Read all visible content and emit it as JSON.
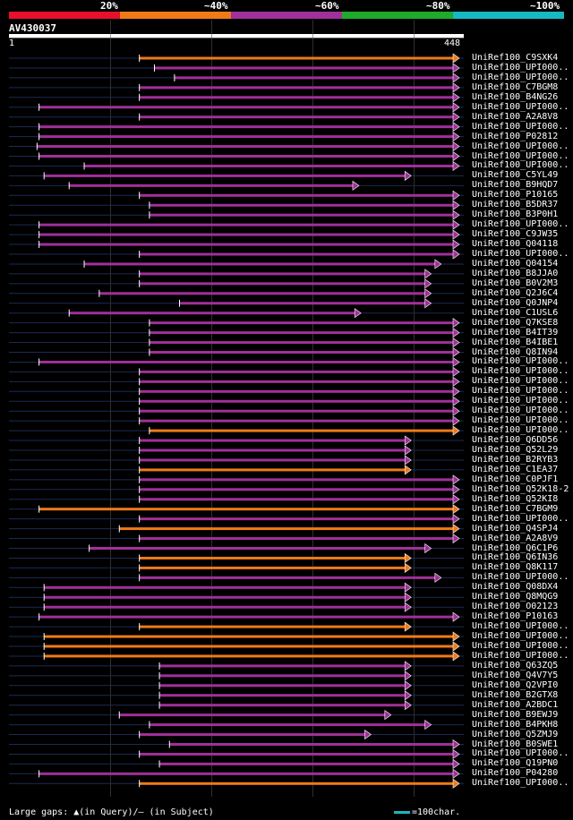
{
  "header": {
    "percent_labels": [
      "20%",
      "~40%",
      "~60%",
      "~80%",
      "~100%"
    ],
    "identity_colors": [
      "#e8102c",
      "#ef7a18",
      "#a0309a",
      "#1faa2c",
      "#16b8c4"
    ],
    "query_name": "AV430037",
    "ruler_start": "1",
    "ruler_end": "448"
  },
  "footer": {
    "gaps_legend": "Large gaps: ▲(in Query)/– (in Subject)",
    "scale_label": "=100char."
  },
  "chart_data": {
    "type": "alignment",
    "query_length": 448,
    "hits": [
      {
        "name": "UniRef100_C9SXK4",
        "start": 130,
        "end": 448,
        "identity": "~40%"
      },
      {
        "name": "UniRef100_UPI000..",
        "start": 145,
        "end": 448,
        "identity": "~60%"
      },
      {
        "name": "UniRef100_UPI000..",
        "start": 165,
        "end": 448,
        "identity": "~60%"
      },
      {
        "name": "UniRef100_C7BGM8",
        "start": 130,
        "end": 448,
        "identity": "~60%"
      },
      {
        "name": "UniRef100_B4NG26",
        "start": 130,
        "end": 448,
        "identity": "~60%"
      },
      {
        "name": "UniRef100_UPI000..",
        "start": 30,
        "end": 448,
        "identity": "~60%"
      },
      {
        "name": "UniRef100_A2A8V8",
        "start": 130,
        "end": 448,
        "identity": "~60%"
      },
      {
        "name": "UniRef100_UPI000..",
        "start": 30,
        "end": 448,
        "identity": "~60%"
      },
      {
        "name": "UniRef100_P02812",
        "start": 30,
        "end": 448,
        "identity": "~60%"
      },
      {
        "name": "UniRef100_UPI000..",
        "start": 28,
        "end": 448,
        "identity": "~60%"
      },
      {
        "name": "UniRef100_UPI000..",
        "start": 30,
        "end": 448,
        "identity": "~60%"
      },
      {
        "name": "UniRef100_UPI000..",
        "start": 75,
        "end": 448,
        "identity": "~60%"
      },
      {
        "name": "UniRef100_C5YL49",
        "start": 35,
        "end": 400,
        "identity": "~60%"
      },
      {
        "name": "UniRef100_B9HQD7",
        "start": 60,
        "end": 348,
        "identity": "~60%"
      },
      {
        "name": "UniRef100_P10165",
        "start": 130,
        "end": 448,
        "identity": "~60%"
      },
      {
        "name": "UniRef100_B5DR37",
        "start": 140,
        "end": 448,
        "identity": "~60%"
      },
      {
        "name": "UniRef100_B3P0H1",
        "start": 140,
        "end": 448,
        "identity": "~60%"
      },
      {
        "name": "UniRef100_UPI000..",
        "start": 30,
        "end": 448,
        "identity": "~60%"
      },
      {
        "name": "UniRef100_C9JW35",
        "start": 30,
        "end": 448,
        "identity": "~60%"
      },
      {
        "name": "UniRef100_Q04118",
        "start": 30,
        "end": 448,
        "identity": "~60%"
      },
      {
        "name": "UniRef100_UPI000..",
        "start": 130,
        "end": 448,
        "identity": "~60%"
      },
      {
        "name": "UniRef100_Q04154",
        "start": 75,
        "end": 430,
        "identity": "~60%"
      },
      {
        "name": "UniRef100_B8JJA0",
        "start": 130,
        "end": 420,
        "identity": "~60%"
      },
      {
        "name": "UniRef100_B0V2M3",
        "start": 130,
        "end": 420,
        "identity": "~60%"
      },
      {
        "name": "UniRef100_Q2J6C4",
        "start": 90,
        "end": 420,
        "identity": "~60%"
      },
      {
        "name": "UniRef100_Q0JNP4",
        "start": 170,
        "end": 420,
        "identity": "~60%"
      },
      {
        "name": "UniRef100_C1USL6",
        "start": 60,
        "end": 350,
        "identity": "~60%"
      },
      {
        "name": "UniRef100_Q7KSE8",
        "start": 140,
        "end": 448,
        "identity": "~60%"
      },
      {
        "name": "UniRef100_B4IT39",
        "start": 140,
        "end": 448,
        "identity": "~60%"
      },
      {
        "name": "UniRef100_B4IBE1",
        "start": 140,
        "end": 448,
        "identity": "~60%"
      },
      {
        "name": "UniRef100_Q8IN94",
        "start": 140,
        "end": 448,
        "identity": "~60%"
      },
      {
        "name": "UniRef100_UPI000..",
        "start": 30,
        "end": 448,
        "identity": "~60%"
      },
      {
        "name": "UniRef100_UPI000..",
        "start": 130,
        "end": 448,
        "identity": "~60%"
      },
      {
        "name": "UniRef100_UPI000..",
        "start": 130,
        "end": 448,
        "identity": "~60%"
      },
      {
        "name": "UniRef100_UPI000..",
        "start": 130,
        "end": 448,
        "identity": "~60%"
      },
      {
        "name": "UniRef100_UPI000..",
        "start": 130,
        "end": 448,
        "identity": "~60%"
      },
      {
        "name": "UniRef100_UPI000..",
        "start": 130,
        "end": 448,
        "identity": "~60%"
      },
      {
        "name": "UniRef100_UPI000..",
        "start": 130,
        "end": 448,
        "identity": "~60%"
      },
      {
        "name": "UniRef100_UPI000..",
        "start": 140,
        "end": 448,
        "identity": "~40%"
      },
      {
        "name": "UniRef100_Q6DD56",
        "start": 130,
        "end": 400,
        "identity": "~60%"
      },
      {
        "name": "UniRef100_Q52L29",
        "start": 130,
        "end": 400,
        "identity": "~60%"
      },
      {
        "name": "UniRef100_B2RYB3",
        "start": 130,
        "end": 400,
        "identity": "~60%"
      },
      {
        "name": "UniRef100_C1EA37",
        "start": 130,
        "end": 400,
        "identity": "~40%"
      },
      {
        "name": "UniRef100_C0PJF1",
        "start": 130,
        "end": 448,
        "identity": "~60%"
      },
      {
        "name": "UniRef100_Q52K18-2",
        "start": 130,
        "end": 448,
        "identity": "~60%"
      },
      {
        "name": "UniRef100_Q52KI8",
        "start": 130,
        "end": 448,
        "identity": "~60%"
      },
      {
        "name": "UniRef100_C7BGM9",
        "start": 30,
        "end": 448,
        "identity": "~40%"
      },
      {
        "name": "UniRef100_UPI000..",
        "start": 130,
        "end": 448,
        "identity": "~60%"
      },
      {
        "name": "UniRef100_Q4SPJ4",
        "start": 110,
        "end": 448,
        "identity": "~40%"
      },
      {
        "name": "UniRef100_A2A8V9",
        "start": 130,
        "end": 448,
        "identity": "~60%"
      },
      {
        "name": "UniRef100_Q6C1P6",
        "start": 80,
        "end": 420,
        "identity": "~60%"
      },
      {
        "name": "UniRef100_Q6IN36",
        "start": 130,
        "end": 400,
        "identity": "~40%"
      },
      {
        "name": "UniRef100_Q8K117",
        "start": 130,
        "end": 400,
        "identity": "~40%"
      },
      {
        "name": "UniRef100_UPI000..",
        "start": 130,
        "end": 430,
        "identity": "~60%"
      },
      {
        "name": "UniRef100_Q08DX4",
        "start": 35,
        "end": 400,
        "identity": "~60%"
      },
      {
        "name": "UniRef100_Q8MQG9",
        "start": 35,
        "end": 400,
        "identity": "~60%"
      },
      {
        "name": "UniRef100_O02123",
        "start": 35,
        "end": 400,
        "identity": "~60%"
      },
      {
        "name": "UniRef100_P10163",
        "start": 30,
        "end": 448,
        "identity": "~60%"
      },
      {
        "name": "UniRef100_UPI000..",
        "start": 130,
        "end": 400,
        "identity": "~40%"
      },
      {
        "name": "UniRef100_UPI000..",
        "start": 35,
        "end": 448,
        "identity": "~40%"
      },
      {
        "name": "UniRef100_UPI000..",
        "start": 35,
        "end": 448,
        "identity": "~40%"
      },
      {
        "name": "UniRef100_UPI000..",
        "start": 35,
        "end": 448,
        "identity": "~40%"
      },
      {
        "name": "UniRef100_Q63ZQ5",
        "start": 150,
        "end": 400,
        "identity": "~60%"
      },
      {
        "name": "UniRef100_Q4V7Y5",
        "start": 150,
        "end": 400,
        "identity": "~60%"
      },
      {
        "name": "UniRef100_Q2VPI0",
        "start": 150,
        "end": 400,
        "identity": "~60%"
      },
      {
        "name": "UniRef100_B2GTX8",
        "start": 150,
        "end": 400,
        "identity": "~60%"
      },
      {
        "name": "UniRef100_A2BDC1",
        "start": 150,
        "end": 400,
        "identity": "~60%"
      },
      {
        "name": "UniRef100_B9EWJ9",
        "start": 110,
        "end": 380,
        "identity": "~60%"
      },
      {
        "name": "UniRef100_B4PKH8",
        "start": 140,
        "end": 420,
        "identity": "~60%"
      },
      {
        "name": "UniRef100_Q5ZMJ9",
        "start": 130,
        "end": 360,
        "identity": "~60%"
      },
      {
        "name": "UniRef100_B0SWE1",
        "start": 160,
        "end": 448,
        "identity": "~60%"
      },
      {
        "name": "UniRef100_UPI000..",
        "start": 130,
        "end": 448,
        "identity": "~60%"
      },
      {
        "name": "UniRef100_Q19PN0",
        "start": 150,
        "end": 448,
        "identity": "~60%"
      },
      {
        "name": "UniRef100_P04280",
        "start": 30,
        "end": 448,
        "identity": "~60%"
      },
      {
        "name": "UniRef100_UPI000..",
        "start": 130,
        "end": 448,
        "identity": "~40%"
      }
    ]
  }
}
